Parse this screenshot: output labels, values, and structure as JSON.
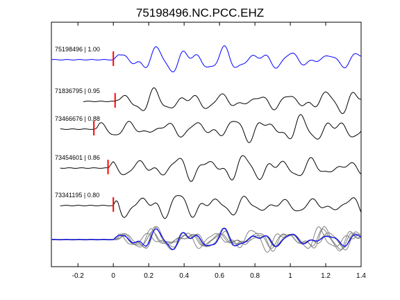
{
  "chart_data": {
    "type": "line",
    "title": "75198496.NC.PCC.EHZ",
    "xlabel": "",
    "ylabel": "",
    "xlim": [
      -0.35,
      1.4
    ],
    "x_ticks": [
      "-0.2",
      "0",
      "0.2",
      "0.4",
      "0.6",
      "0.8",
      "1",
      "1.2",
      "1.4"
    ],
    "x_tick_values": [
      -0.2,
      0,
      0.2,
      0.4,
      0.6,
      0.8,
      1.0,
      1.2,
      1.4
    ],
    "grid": false,
    "colors": {
      "master": "#0000ff",
      "trace": "#000000",
      "overlay": "#808080",
      "pick": "#ff0000"
    },
    "series": [
      {
        "name": "75198496 | 1.00",
        "pick_time": 0.0,
        "color": "#0000ff"
      },
      {
        "name": "71836795 | 0.95",
        "pick_time": 0.01,
        "color": "#000000"
      },
      {
        "name": "73466676 | 0.88",
        "pick_time": -0.11,
        "color": "#000000"
      },
      {
        "name": "73454601 | 0.86",
        "pick_time": -0.03,
        "color": "#000000"
      },
      {
        "name": "73341195 | 0.80",
        "pick_time": 0.0,
        "color": "#000000"
      }
    ],
    "stack": {
      "name": "",
      "overlay_count": 5
    }
  }
}
